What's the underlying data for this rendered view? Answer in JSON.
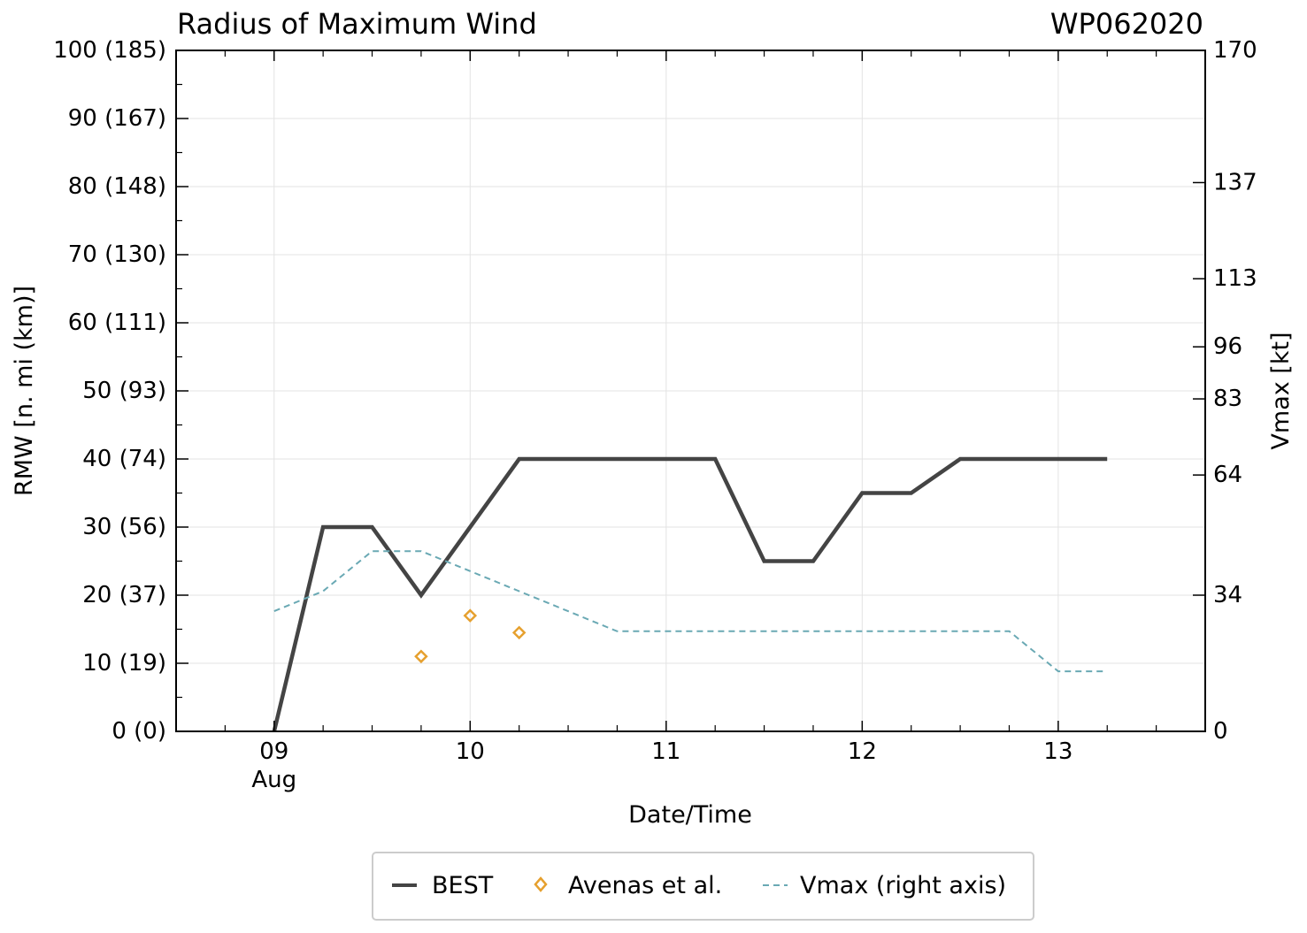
{
  "chart_data": {
    "type": "line",
    "title": "Radius of Maximum Wind",
    "storm_id": "WP062020",
    "xlabel": "Date/Time",
    "ylabel": "RMW [n. mi (km)]",
    "y2label": "Vmax [kt]",
    "x_ticks": [
      {
        "x": 9,
        "label": "09",
        "sublabel": "Aug"
      },
      {
        "x": 10,
        "label": "10",
        "sublabel": ""
      },
      {
        "x": 11,
        "label": "11",
        "sublabel": ""
      },
      {
        "x": 12,
        "label": "12",
        "sublabel": ""
      },
      {
        "x": 13,
        "label": "13",
        "sublabel": ""
      }
    ],
    "xlim": [
      8.5,
      13.75
    ],
    "ylim": [
      0,
      100
    ],
    "y2lim": [
      0,
      170
    ],
    "y_ticks": [
      {
        "v": 0,
        "label": "0 (0)"
      },
      {
        "v": 10,
        "label": "10 (19)"
      },
      {
        "v": 20,
        "label": "20 (37)"
      },
      {
        "v": 30,
        "label": "30 (56)"
      },
      {
        "v": 40,
        "label": "40 (74)"
      },
      {
        "v": 50,
        "label": "50 (93)"
      },
      {
        "v": 60,
        "label": "60 (111)"
      },
      {
        "v": 70,
        "label": "70 (130)"
      },
      {
        "v": 80,
        "label": "80 (148)"
      },
      {
        "v": 90,
        "label": "90 (167)"
      },
      {
        "v": 100,
        "label": "100 (185)"
      }
    ],
    "y2_ticks": [
      {
        "v": 0,
        "label": "0"
      },
      {
        "v": 34,
        "label": "34"
      },
      {
        "v": 64,
        "label": "64"
      },
      {
        "v": 83,
        "label": "83"
      },
      {
        "v": 96,
        "label": "96"
      },
      {
        "v": 113,
        "label": "113"
      },
      {
        "v": 137,
        "label": "137"
      },
      {
        "v": 170,
        "label": "170"
      }
    ],
    "grid": true,
    "legend_position": "bottom-center",
    "series": [
      {
        "name": "BEST",
        "style": "solid",
        "color": "#444444",
        "x": [
          9.0,
          9.25,
          9.5,
          9.75,
          10.0,
          10.25,
          10.5,
          10.75,
          11.0,
          11.25,
          11.5,
          11.75,
          12.0,
          12.25,
          12.5,
          12.75,
          13.0,
          13.25
        ],
        "y": [
          0,
          30,
          30,
          20,
          30,
          40,
          40,
          40,
          40,
          40,
          25,
          25,
          35,
          35,
          40,
          40,
          40,
          40
        ]
      },
      {
        "name": "Avenas et al.",
        "style": "marker-diamond",
        "color": "#e6a02e",
        "x": [
          9.75,
          10.0,
          10.25
        ],
        "y": [
          11,
          17,
          14.5
        ]
      },
      {
        "name": "Vmax (right axis)",
        "style": "dashed",
        "axis": "right",
        "color": "#6aa9b4",
        "x": [
          9.0,
          9.25,
          9.5,
          9.75,
          10.0,
          10.25,
          10.5,
          10.75,
          11.0,
          11.25,
          11.5,
          11.75,
          12.0,
          12.25,
          12.5,
          12.75,
          13.0,
          13.25
        ],
        "y": [
          30,
          35,
          45,
          45,
          40,
          35,
          30,
          25,
          25,
          25,
          25,
          25,
          25,
          25,
          25,
          25,
          15,
          15
        ]
      }
    ]
  }
}
